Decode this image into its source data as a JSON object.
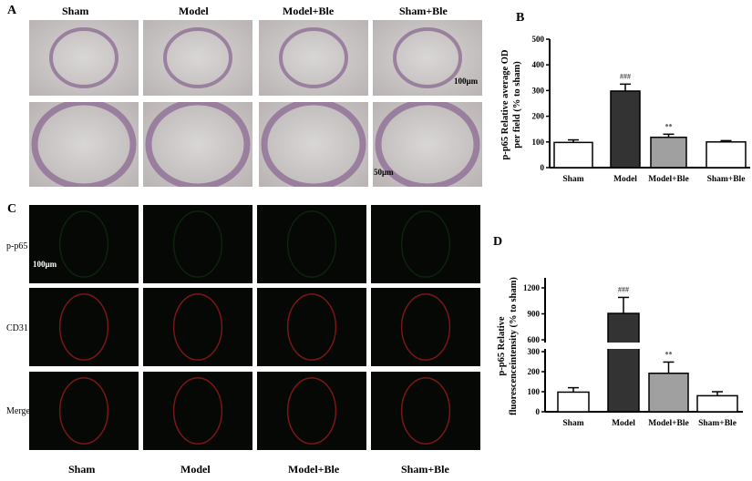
{
  "panels": {
    "a": "A",
    "b": "B",
    "c": "C",
    "d": "D"
  },
  "groups": [
    "Sham",
    "Model",
    "Model+Ble",
    "Sham+Ble"
  ],
  "scale_bars": {
    "a_top": "100μm",
    "a_bottom": "50μm",
    "c": "100μm"
  },
  "c_rows": [
    "p-p65",
    "CD31",
    "Merge"
  ],
  "colors": {
    "white_bar": "#ffffff",
    "model_bar": "#333333",
    "model_ble_bar": "#a0a0a0"
  },
  "chart_data": [
    {
      "type": "bar",
      "panel": "B",
      "categories": [
        "Sham",
        "Model",
        "Model+Ble",
        "Sham+Ble"
      ],
      "values": [
        98,
        298,
        118,
        100
      ],
      "errors": [
        10,
        27,
        12,
        5
      ],
      "annotations": [
        "",
        "###",
        "**",
        ""
      ],
      "ylabel": "p-p65 Relative average OD per field (% to sham)",
      "ylim": [
        0,
        500
      ],
      "yticks": [
        0,
        100,
        200,
        300,
        400,
        500
      ]
    },
    {
      "type": "bar",
      "panel": "D",
      "categories": [
        "Sham",
        "Model",
        "Model+Ble",
        "Sham+Ble"
      ],
      "values": [
        98,
        905,
        192,
        80
      ],
      "errors": [
        22,
        185,
        56,
        20
      ],
      "annotations": [
        "",
        "###",
        "**",
        ""
      ],
      "ylabel": "p-p65 Relative fluorescenceintensity (% to sham)",
      "ylim": [
        0,
        1300
      ],
      "axis_break": [
        300,
        600
      ],
      "yticks": [
        0,
        100,
        200,
        300,
        600,
        900,
        1200
      ]
    }
  ]
}
